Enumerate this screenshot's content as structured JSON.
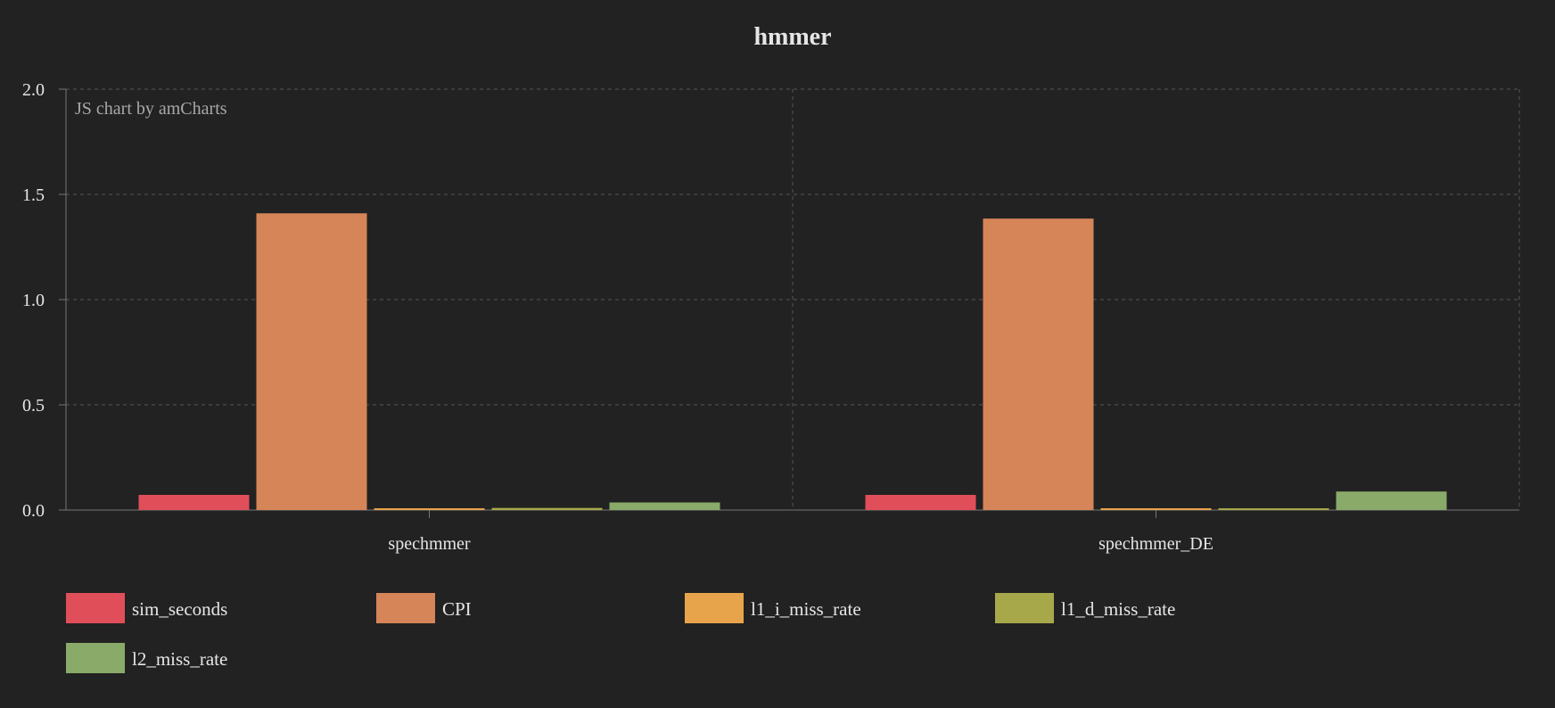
{
  "chart_data": {
    "type": "bar",
    "title": "hmmer",
    "credit": "JS chart by amCharts",
    "xlabel": "",
    "ylabel": "",
    "ylim": [
      0,
      2.0
    ],
    "yticks": [
      "0.0",
      "0.5",
      "1.0",
      "1.5",
      "2.0"
    ],
    "ytick_values": [
      0,
      0.5,
      1.0,
      1.5,
      2.0
    ],
    "grid": true,
    "legend_position": "bottom",
    "categories": [
      "spechmmer",
      "spechmmer_DE"
    ],
    "series": [
      {
        "name": "sim_seconds",
        "color": "#e04e5a",
        "values": [
          0.072,
          0.072
        ]
      },
      {
        "name": "CPI",
        "color": "#d68559",
        "values": [
          1.41,
          1.385
        ]
      },
      {
        "name": "l1_i_miss_rate",
        "color": "#e8a44a",
        "values": [
          0.004,
          0.004
        ]
      },
      {
        "name": "l1_d_miss_rate",
        "color": "#a7a84a",
        "values": [
          0.01,
          0.006
        ]
      },
      {
        "name": "l2_miss_rate",
        "color": "#8aaa6a",
        "values": [
          0.036,
          0.088
        ]
      }
    ]
  }
}
